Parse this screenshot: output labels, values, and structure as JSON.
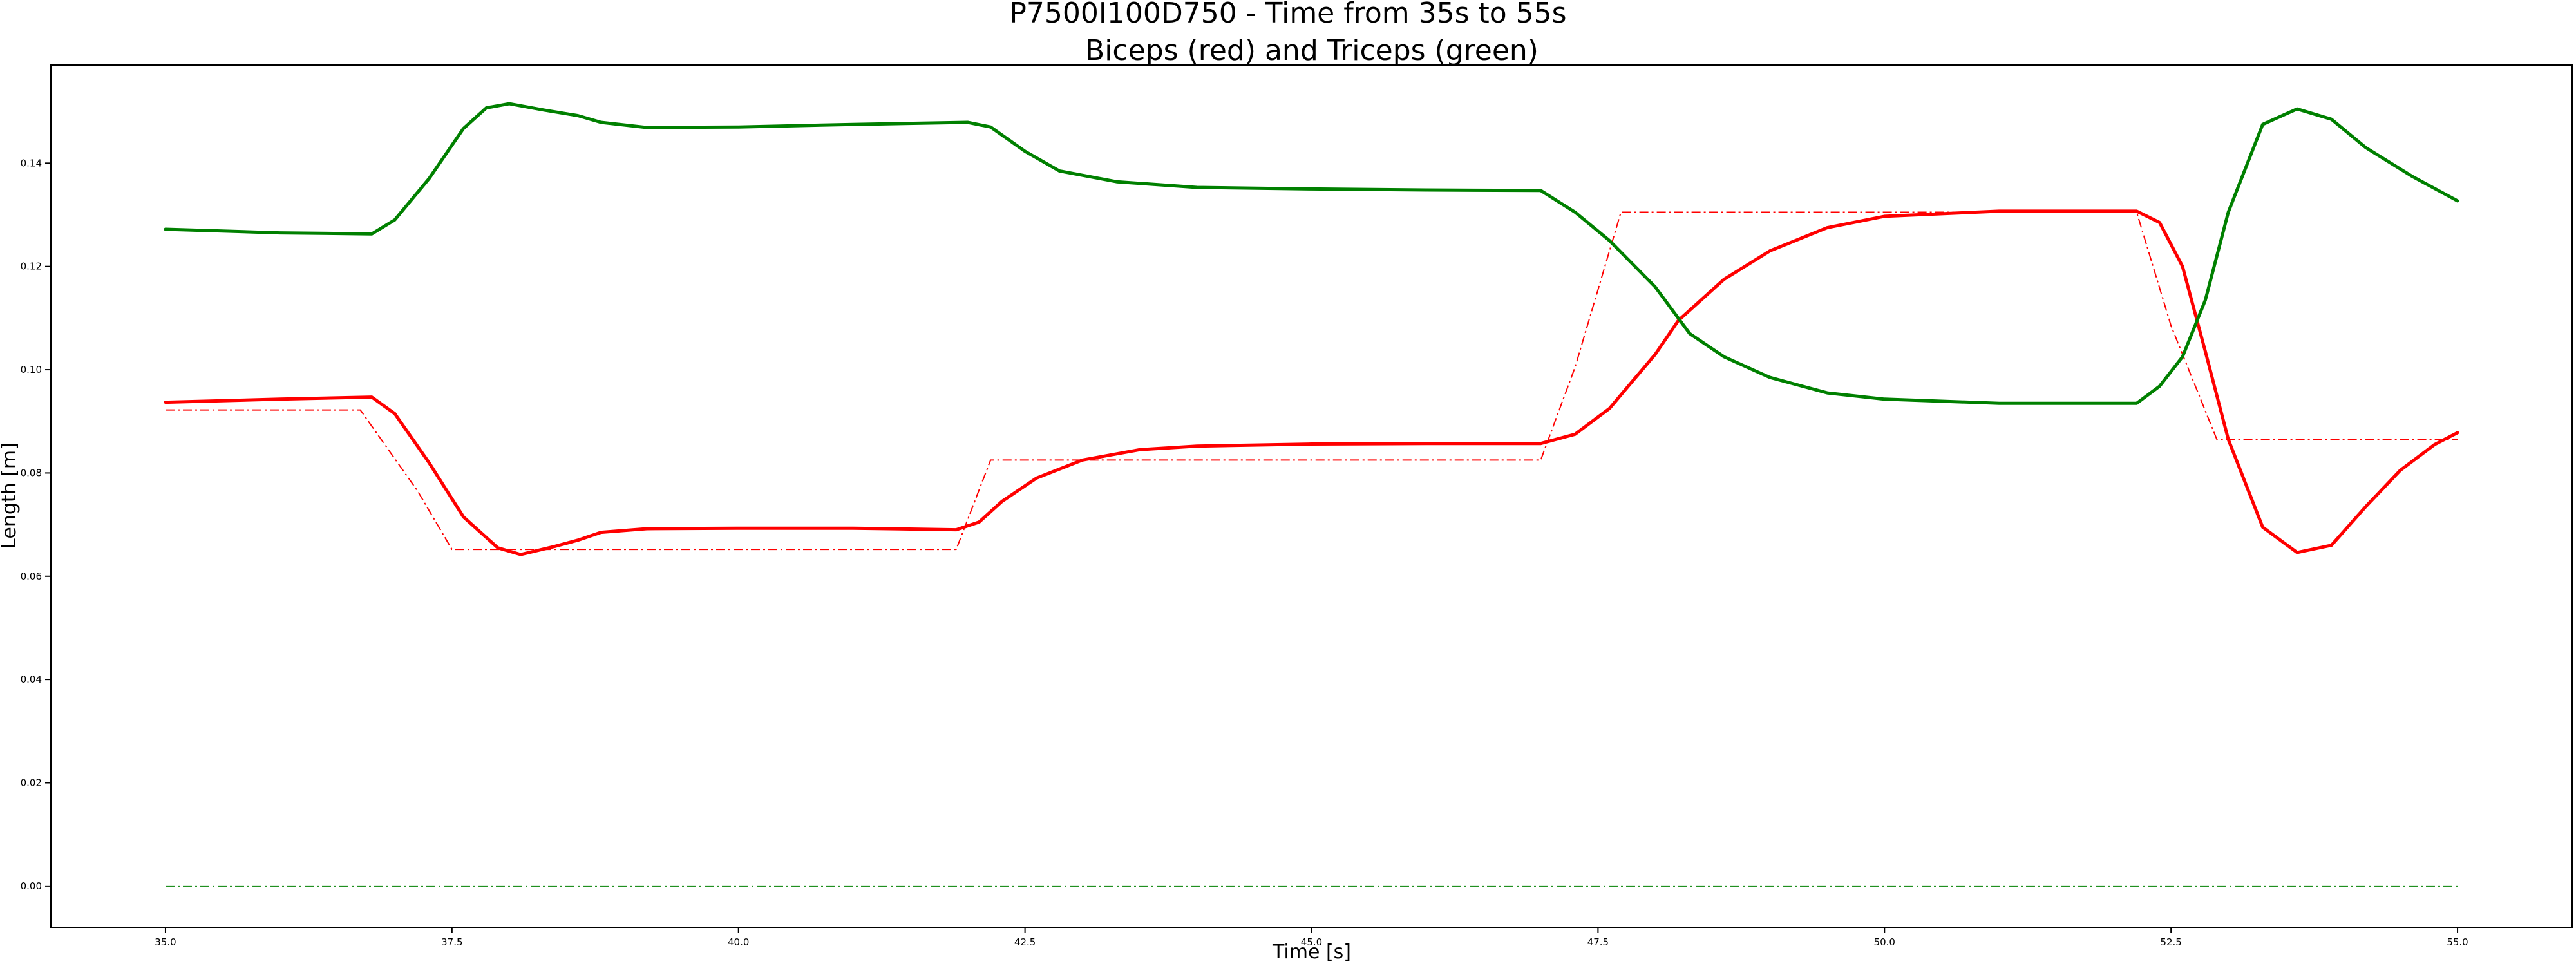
{
  "chart_data": {
    "type": "line",
    "title": "P7500I100D750 - Time from 35s to 55s",
    "subtitle": "Biceps (red) and Triceps (green)",
    "xlabel": "Time [s]",
    "ylabel": "Length [m]",
    "xlim": [
      34.0,
      56.0
    ],
    "ylim": [
      -0.008,
      0.159
    ],
    "x_ticks": [
      35.0,
      37.5,
      40.0,
      42.5,
      45.0,
      47.5,
      50.0,
      52.5,
      55.0
    ],
    "x_tick_labels": [
      "35.0",
      "37.5",
      "40.0",
      "42.5",
      "45.0",
      "47.5",
      "50.0",
      "52.5",
      "55.0"
    ],
    "y_ticks": [
      0.0,
      0.02,
      0.04,
      0.06,
      0.08,
      0.1,
      0.12,
      0.14
    ],
    "y_tick_labels": [
      "0.00",
      "0.02",
      "0.04",
      "0.06",
      "0.08",
      "0.10",
      "0.12",
      "0.14"
    ],
    "grid": false,
    "legend": "none",
    "series": [
      {
        "style": "solid",
        "color": "#ff0000",
        "x": [
          35.0,
          36.0,
          36.8,
          37.0,
          37.3,
          37.6,
          37.9,
          38.1,
          38.4,
          38.6,
          38.8,
          39.2,
          40.0,
          41.0,
          41.9,
          42.1,
          42.3,
          42.6,
          43.0,
          43.5,
          44.0,
          45.0,
          46.0,
          47.0,
          47.3,
          47.6,
          48.0,
          48.2,
          48.6,
          49.0,
          49.5,
          50.0,
          51.0,
          52.2,
          52.4,
          52.6,
          52.8,
          53.0,
          53.3,
          53.6,
          53.9,
          54.2,
          54.5,
          54.8,
          55.0
        ],
        "y": [
          0.0937,
          0.0943,
          0.0947,
          0.0915,
          0.082,
          0.0715,
          0.0655,
          0.0642,
          0.0658,
          0.067,
          0.0685,
          0.0692,
          0.0693,
          0.0693,
          0.069,
          0.0705,
          0.0745,
          0.079,
          0.0825,
          0.0845,
          0.0852,
          0.0856,
          0.0857,
          0.0857,
          0.0875,
          0.0925,
          0.103,
          0.1095,
          0.1175,
          0.123,
          0.1275,
          0.1297,
          0.1307,
          0.1307,
          0.1285,
          0.12,
          0.1035,
          0.0865,
          0.0695,
          0.0646,
          0.066,
          0.0735,
          0.0805,
          0.0855,
          0.0878
        ]
      },
      {
        "style": "dashdot",
        "color": "#ff0000",
        "x": [
          35.0,
          36.7,
          37.2,
          37.5,
          39.0,
          41.9,
          42.2,
          45.0,
          47.0,
          47.3,
          47.7,
          50.0,
          52.2,
          52.5,
          52.9,
          55.0
        ],
        "y": [
          0.0922,
          0.0922,
          0.0765,
          0.0652,
          0.0652,
          0.0652,
          0.0825,
          0.0825,
          0.0825,
          0.1005,
          0.1305,
          0.1305,
          0.1305,
          0.1085,
          0.0865,
          0.0865
        ]
      },
      {
        "style": "solid",
        "color": "#008000",
        "x": [
          35.0,
          36.0,
          36.8,
          37.0,
          37.3,
          37.6,
          37.8,
          38.0,
          38.3,
          38.6,
          38.8,
          39.2,
          40.0,
          41.0,
          42.0,
          42.2,
          42.5,
          42.8,
          43.3,
          44.0,
          45.0,
          46.0,
          47.0,
          47.3,
          47.6,
          48.0,
          48.3,
          48.6,
          49.0,
          49.5,
          50.0,
          51.0,
          52.2,
          52.4,
          52.6,
          52.8,
          53.0,
          53.3,
          53.6,
          53.9,
          54.2,
          54.6,
          55.0
        ],
        "y": [
          0.1272,
          0.1265,
          0.1263,
          0.129,
          0.137,
          0.1467,
          0.1507,
          0.1515,
          0.1503,
          0.1492,
          0.1479,
          0.1469,
          0.147,
          0.1475,
          0.1479,
          0.147,
          0.1423,
          0.1385,
          0.1364,
          0.1353,
          0.135,
          0.1348,
          0.1347,
          0.1305,
          0.125,
          0.116,
          0.107,
          0.1025,
          0.0985,
          0.0955,
          0.0943,
          0.0935,
          0.0935,
          0.0968,
          0.1025,
          0.1135,
          0.1305,
          0.1475,
          0.1505,
          0.1485,
          0.143,
          0.1375,
          0.1327
        ]
      },
      {
        "style": "dashdot",
        "color": "#008000",
        "x": [
          35.0,
          55.0
        ],
        "y": [
          0.0,
          0.0
        ]
      }
    ]
  }
}
